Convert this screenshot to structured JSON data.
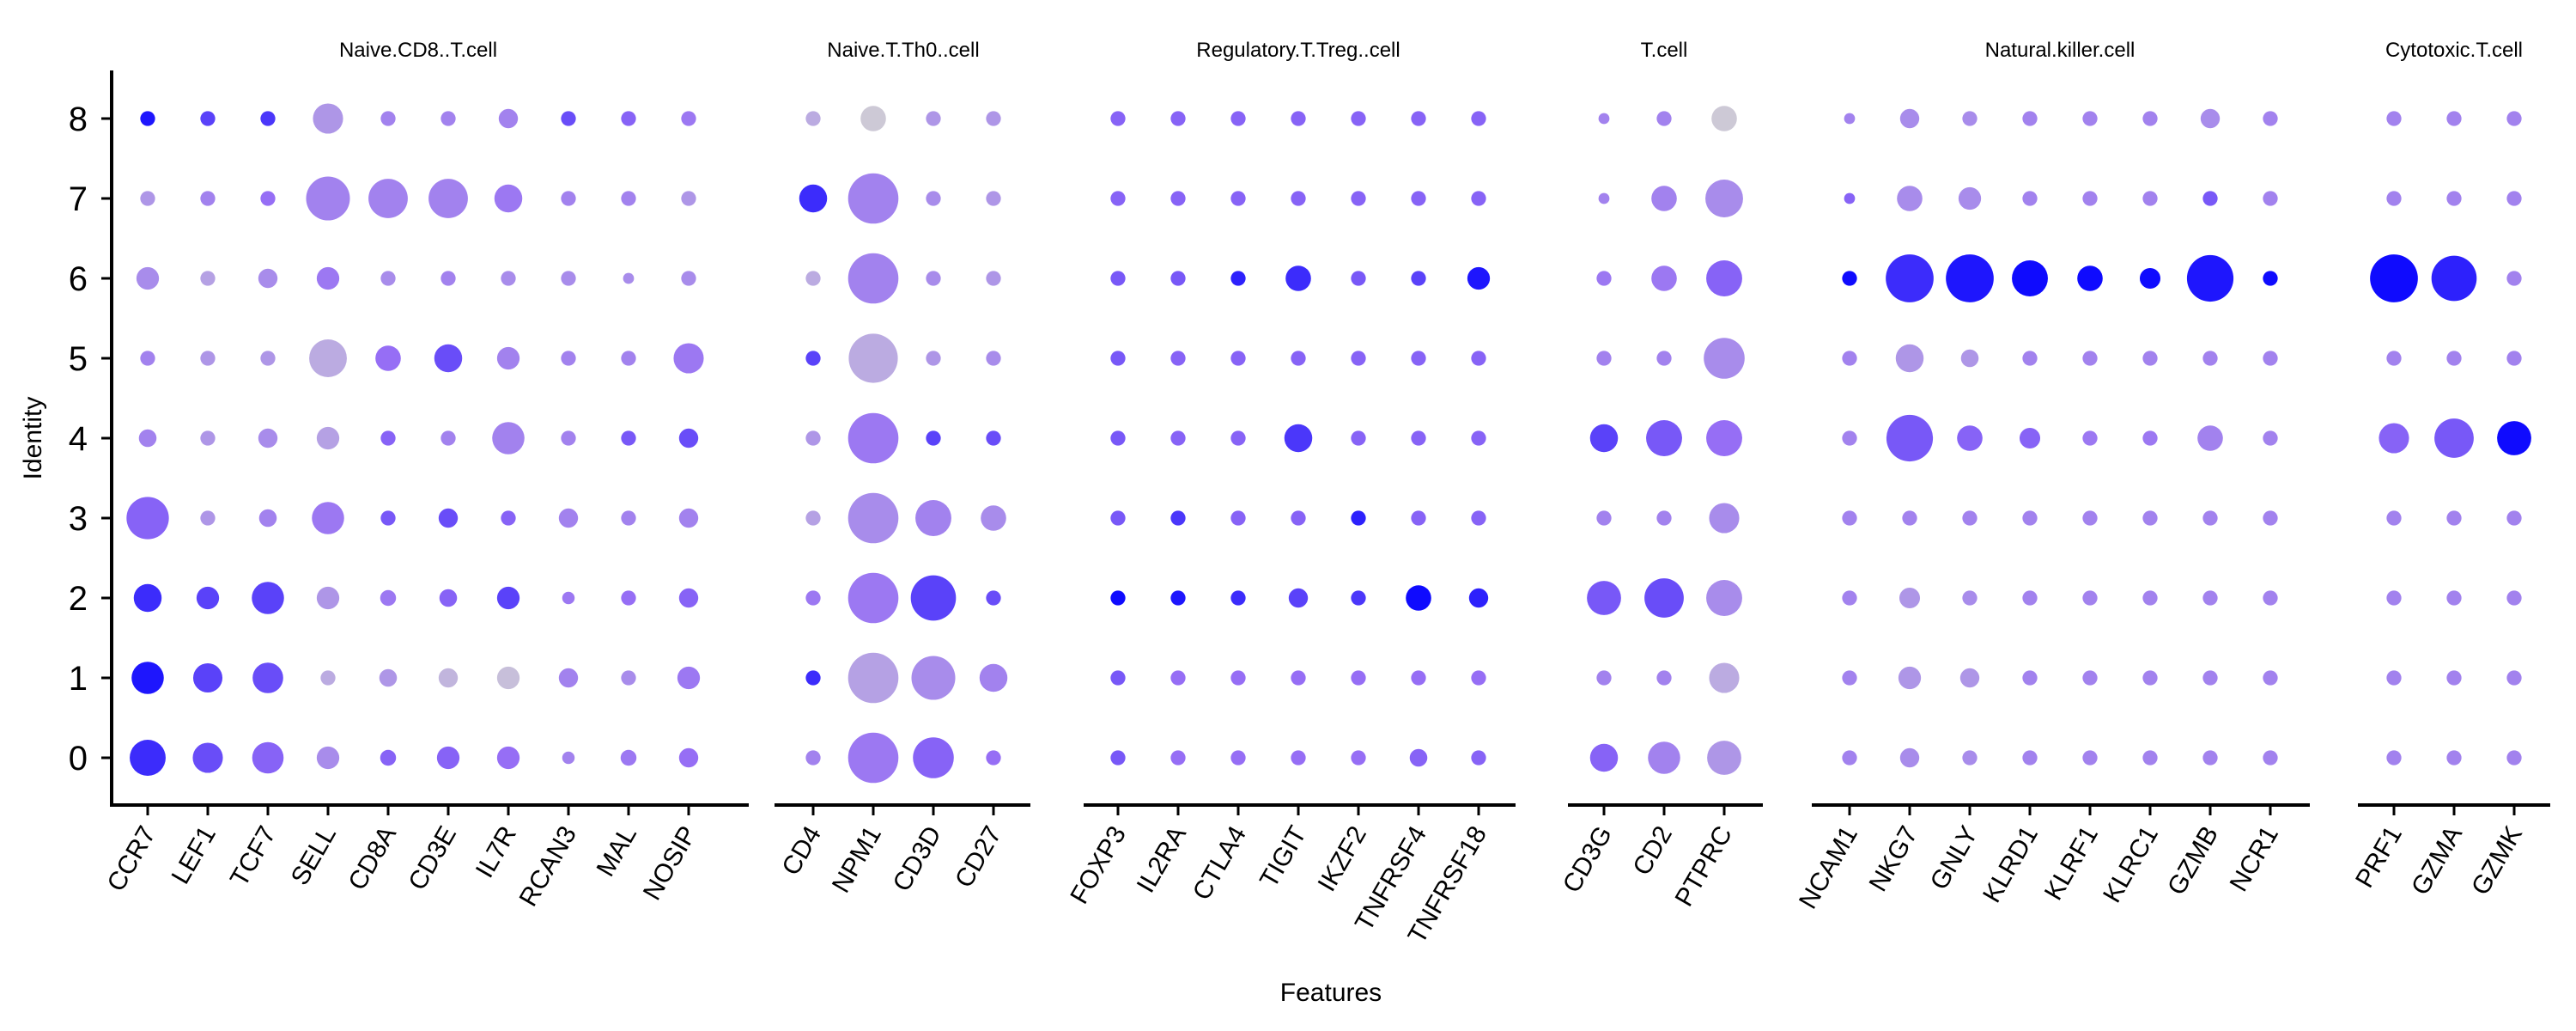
{
  "chart_data": {
    "type": "dotplot",
    "xlabel": "Features",
    "ylabel": "Identity",
    "identities": [
      "0",
      "1",
      "2",
      "3",
      "4",
      "5",
      "6",
      "7",
      "8"
    ],
    "color_low": "#d3d3d3",
    "color_high": "#0000ff",
    "facets": [
      {
        "title": "Naive.CD8..T.cell",
        "features": [
          "CCR7",
          "LEF1",
          "TCF7",
          "SELL",
          "CD8A",
          "CD3E",
          "IL7R",
          "RCAN3",
          "MAL",
          "NOSIP"
        ],
        "size": [
          [
            0.45,
            0.3,
            0.33,
            0.15,
            0.06,
            0.15,
            0.15,
            0.03,
            0.06,
            0.1
          ],
          [
            0.35,
            0.28,
            0.31,
            0.05,
            0.08,
            0.1,
            0.15,
            0.1,
            0.05,
            0.15
          ],
          [
            0.25,
            0.15,
            0.35,
            0.15,
            0.06,
            0.08,
            0.15,
            0.03,
            0.05,
            0.1
          ],
          [
            0.65,
            0.05,
            0.08,
            0.35,
            0.05,
            0.1,
            0.05,
            0.1,
            0.05,
            0.1
          ],
          [
            0.08,
            0.05,
            0.1,
            0.15,
            0.05,
            0.05,
            0.35,
            0.05,
            0.05,
            0.1
          ],
          [
            0.05,
            0.05,
            0.05,
            0.5,
            0.2,
            0.25,
            0.15,
            0.05,
            0.05,
            0.3
          ],
          [
            0.15,
            0.05,
            0.1,
            0.15,
            0.05,
            0.05,
            0.05,
            0.05,
            0.02,
            0.05
          ],
          [
            0.05,
            0.05,
            0.05,
            0.7,
            0.55,
            0.55,
            0.25,
            0.05,
            0.05,
            0.05
          ],
          [
            0.05,
            0.05,
            0.05,
            0.3,
            0.05,
            0.05,
            0.1,
            0.05,
            0.05,
            0.05
          ]
        ],
        "expr": [
          [
            0.8,
            0.65,
            0.55,
            0.35,
            0.55,
            0.55,
            0.5,
            0.4,
            0.45,
            0.5
          ],
          [
            0.9,
            0.7,
            0.65,
            0.2,
            0.3,
            0.15,
            0.1,
            0.4,
            0.35,
            0.45
          ],
          [
            0.8,
            0.7,
            0.7,
            0.3,
            0.45,
            0.55,
            0.7,
            0.45,
            0.5,
            0.55
          ],
          [
            0.55,
            0.3,
            0.4,
            0.45,
            0.6,
            0.65,
            0.55,
            0.4,
            0.4,
            0.4
          ],
          [
            0.4,
            0.3,
            0.35,
            0.25,
            0.55,
            0.4,
            0.4,
            0.4,
            0.6,
            0.65
          ],
          [
            0.4,
            0.3,
            0.3,
            0.2,
            0.5,
            0.65,
            0.4,
            0.4,
            0.4,
            0.45
          ],
          [
            0.35,
            0.25,
            0.35,
            0.45,
            0.35,
            0.4,
            0.35,
            0.35,
            0.35,
            0.35
          ],
          [
            0.3,
            0.4,
            0.5,
            0.4,
            0.4,
            0.4,
            0.45,
            0.4,
            0.4,
            0.3
          ],
          [
            0.9,
            0.7,
            0.75,
            0.3,
            0.4,
            0.4,
            0.4,
            0.65,
            0.55,
            0.45
          ]
        ]
      },
      {
        "title": "Naive.T.Th0..cell",
        "features": [
          "CD4",
          "NPM1",
          "CD3D",
          "CD27"
        ],
        "size": [
          [
            0.05,
            0.95,
            0.6,
            0.05
          ],
          [
            0.05,
            0.95,
            0.7,
            0.25
          ],
          [
            0.05,
            0.95,
            0.75,
            0.05
          ],
          [
            0.05,
            0.95,
            0.45,
            0.2
          ],
          [
            0.05,
            0.95,
            0.05,
            0.05
          ],
          [
            0.05,
            0.9,
            0.05,
            0.05
          ],
          [
            0.05,
            0.95,
            0.05,
            0.05
          ],
          [
            0.25,
            0.95,
            0.05,
            0.05
          ],
          [
            0.05,
            0.2,
            0.05,
            0.05
          ]
        ],
        "expr": [
          [
            0.4,
            0.45,
            0.55,
            0.5
          ],
          [
            0.8,
            0.25,
            0.35,
            0.4
          ],
          [
            0.45,
            0.45,
            0.7,
            0.65
          ],
          [
            0.25,
            0.35,
            0.4,
            0.35
          ],
          [
            0.3,
            0.45,
            0.7,
            0.65
          ],
          [
            0.7,
            0.2,
            0.3,
            0.35
          ],
          [
            0.2,
            0.4,
            0.35,
            0.3
          ],
          [
            0.8,
            0.4,
            0.35,
            0.3
          ],
          [
            0.2,
            0.05,
            0.3,
            0.3
          ]
        ]
      },
      {
        "title": "Regulatory.T.Treg..cell",
        "features": [
          "FOXP3",
          "IL2RA",
          "CTLA4",
          "TIGIT",
          "IKZF2",
          "TNFRSF4",
          "TNFRSF18"
        ],
        "size": [
          [
            0.05,
            0.05,
            0.05,
            0.05,
            0.05,
            0.08,
            0.05
          ],
          [
            0.05,
            0.05,
            0.05,
            0.05,
            0.05,
            0.05,
            0.05
          ],
          [
            0.05,
            0.05,
            0.05,
            0.1,
            0.05,
            0.2,
            0.1
          ],
          [
            0.05,
            0.05,
            0.05,
            0.05,
            0.05,
            0.05,
            0.05
          ],
          [
            0.05,
            0.05,
            0.05,
            0.25,
            0.05,
            0.05,
            0.05
          ],
          [
            0.05,
            0.05,
            0.05,
            0.05,
            0.05,
            0.05,
            0.05
          ],
          [
            0.05,
            0.05,
            0.05,
            0.2,
            0.05,
            0.05,
            0.15
          ],
          [
            0.05,
            0.05,
            0.05,
            0.05,
            0.05,
            0.05,
            0.05
          ],
          [
            0.05,
            0.05,
            0.05,
            0.05,
            0.05,
            0.05,
            0.05
          ]
        ],
        "expr": [
          [
            0.6,
            0.5,
            0.5,
            0.5,
            0.5,
            0.55,
            0.55
          ],
          [
            0.6,
            0.5,
            0.5,
            0.5,
            0.5,
            0.5,
            0.5
          ],
          [
            0.95,
            0.9,
            0.8,
            0.7,
            0.75,
            0.95,
            0.85
          ],
          [
            0.6,
            0.75,
            0.55,
            0.55,
            0.85,
            0.55,
            0.55
          ],
          [
            0.6,
            0.55,
            0.55,
            0.75,
            0.55,
            0.55,
            0.55
          ],
          [
            0.6,
            0.55,
            0.55,
            0.55,
            0.55,
            0.55,
            0.55
          ],
          [
            0.6,
            0.6,
            0.85,
            0.8,
            0.6,
            0.7,
            0.9
          ],
          [
            0.55,
            0.55,
            0.55,
            0.55,
            0.55,
            0.55,
            0.55
          ],
          [
            0.55,
            0.55,
            0.55,
            0.55,
            0.55,
            0.55,
            0.55
          ]
        ]
      },
      {
        "title": "T.cell",
        "features": [
          "CD3G",
          "CD2",
          "PTPRC"
        ],
        "size": [
          [
            0.25,
            0.35,
            0.4
          ],
          [
            0.05,
            0.05,
            0.3
          ],
          [
            0.4,
            0.55,
            0.45
          ],
          [
            0.05,
            0.05,
            0.3
          ],
          [
            0.25,
            0.45,
            0.45
          ],
          [
            0.05,
            0.05,
            0.6
          ],
          [
            0.05,
            0.2,
            0.45
          ],
          [
            0.02,
            0.2,
            0.5
          ],
          [
            0.02,
            0.05,
            0.2
          ]
        ],
        "expr": [
          [
            0.55,
            0.4,
            0.3
          ],
          [
            0.4,
            0.4,
            0.2
          ],
          [
            0.6,
            0.65,
            0.35
          ],
          [
            0.4,
            0.4,
            0.35
          ],
          [
            0.7,
            0.6,
            0.5
          ],
          [
            0.4,
            0.4,
            0.35
          ],
          [
            0.45,
            0.45,
            0.55
          ],
          [
            0.4,
            0.4,
            0.35
          ],
          [
            0.4,
            0.4,
            0.05
          ]
        ]
      },
      {
        "title": "Natural.killer.cell",
        "features": [
          "NCAM1",
          "NKG7",
          "GNLY",
          "KLRD1",
          "KLRF1",
          "KLRC1",
          "GZMB",
          "NCR1"
        ],
        "size": [
          [
            0.05,
            0.1,
            0.05,
            0.05,
            0.05,
            0.05,
            0.05,
            0.05
          ],
          [
            0.05,
            0.15,
            0.1,
            0.05,
            0.05,
            0.05,
            0.05,
            0.05
          ],
          [
            0.05,
            0.12,
            0.05,
            0.05,
            0.05,
            0.05,
            0.05,
            0.05
          ],
          [
            0.05,
            0.05,
            0.05,
            0.05,
            0.05,
            0.05,
            0.05,
            0.05
          ],
          [
            0.05,
            0.8,
            0.2,
            0.12,
            0.05,
            0.05,
            0.2,
            0.05
          ],
          [
            0.05,
            0.25,
            0.08,
            0.05,
            0.05,
            0.05,
            0.05,
            0.05
          ],
          [
            0.05,
            0.85,
            0.85,
            0.45,
            0.2,
            0.12,
            0.8,
            0.05
          ],
          [
            0.02,
            0.2,
            0.15,
            0.05,
            0.05,
            0.05,
            0.05,
            0.05
          ],
          [
            0.02,
            0.1,
            0.05,
            0.05,
            0.05,
            0.05,
            0.1,
            0.05
          ]
        ],
        "expr": [
          [
            0.4,
            0.35,
            0.35,
            0.4,
            0.4,
            0.4,
            0.4,
            0.4
          ],
          [
            0.4,
            0.3,
            0.3,
            0.4,
            0.4,
            0.4,
            0.4,
            0.4
          ],
          [
            0.4,
            0.3,
            0.35,
            0.4,
            0.4,
            0.4,
            0.4,
            0.4
          ],
          [
            0.4,
            0.4,
            0.4,
            0.4,
            0.4,
            0.4,
            0.4,
            0.4
          ],
          [
            0.4,
            0.6,
            0.55,
            0.55,
            0.45,
            0.45,
            0.4,
            0.4
          ],
          [
            0.4,
            0.3,
            0.3,
            0.4,
            0.4,
            0.4,
            0.4,
            0.4
          ],
          [
            0.95,
            0.8,
            0.9,
            0.95,
            0.95,
            0.95,
            0.9,
            0.95
          ],
          [
            0.55,
            0.35,
            0.35,
            0.4,
            0.4,
            0.4,
            0.6,
            0.4
          ],
          [
            0.4,
            0.35,
            0.35,
            0.4,
            0.4,
            0.4,
            0.35,
            0.4
          ]
        ]
      },
      {
        "title": "Cytotoxic.T.cell",
        "features": [
          "PRF1",
          "GZMA",
          "GZMK"
        ],
        "size": [
          [
            0.05,
            0.05,
            0.05
          ],
          [
            0.05,
            0.05,
            0.05
          ],
          [
            0.05,
            0.05,
            0.05
          ],
          [
            0.05,
            0.05,
            0.05
          ],
          [
            0.3,
            0.55,
            0.4
          ],
          [
            0.05,
            0.05,
            0.05
          ],
          [
            0.85,
            0.75,
            0.05
          ],
          [
            0.05,
            0.05,
            0.05
          ],
          [
            0.05,
            0.05,
            0.05
          ]
        ],
        "expr": [
          [
            0.4,
            0.4,
            0.4
          ],
          [
            0.4,
            0.4,
            0.4
          ],
          [
            0.4,
            0.4,
            0.4
          ],
          [
            0.4,
            0.4,
            0.4
          ],
          [
            0.55,
            0.6,
            0.95
          ],
          [
            0.4,
            0.4,
            0.4
          ],
          [
            0.95,
            0.85,
            0.4
          ],
          [
            0.4,
            0.4,
            0.4
          ],
          [
            0.4,
            0.4,
            0.4
          ]
        ]
      }
    ]
  }
}
